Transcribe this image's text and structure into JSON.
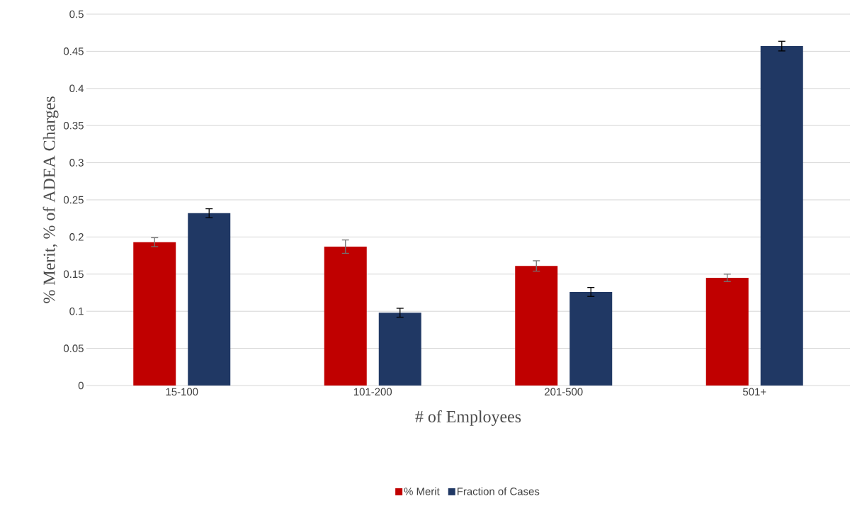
{
  "chart_data": {
    "type": "bar",
    "xlabel": "# of Employees",
    "ylabel": "% Merit, % of ADEA Charges",
    "categories": [
      "15-100",
      "101-200",
      "201-500",
      "501+"
    ],
    "series": [
      {
        "name": "%  Merit",
        "color": "#c00000",
        "values": [
          0.193,
          0.187,
          0.161,
          0.145
        ],
        "errors": [
          0.006,
          0.009,
          0.007,
          0.005
        ]
      },
      {
        "name": "Fraction of Cases",
        "color": "#203864",
        "values": [
          0.232,
          0.098,
          0.126,
          0.457
        ],
        "errors": [
          0.006,
          0.006,
          0.006,
          0.0065
        ]
      }
    ],
    "ylim": [
      0,
      0.5
    ],
    "yticks": [
      0,
      0.05,
      0.1,
      0.15,
      0.2,
      0.25,
      0.3,
      0.35,
      0.4,
      0.45,
      0.5
    ],
    "grid": "y",
    "legend": "bottom"
  }
}
